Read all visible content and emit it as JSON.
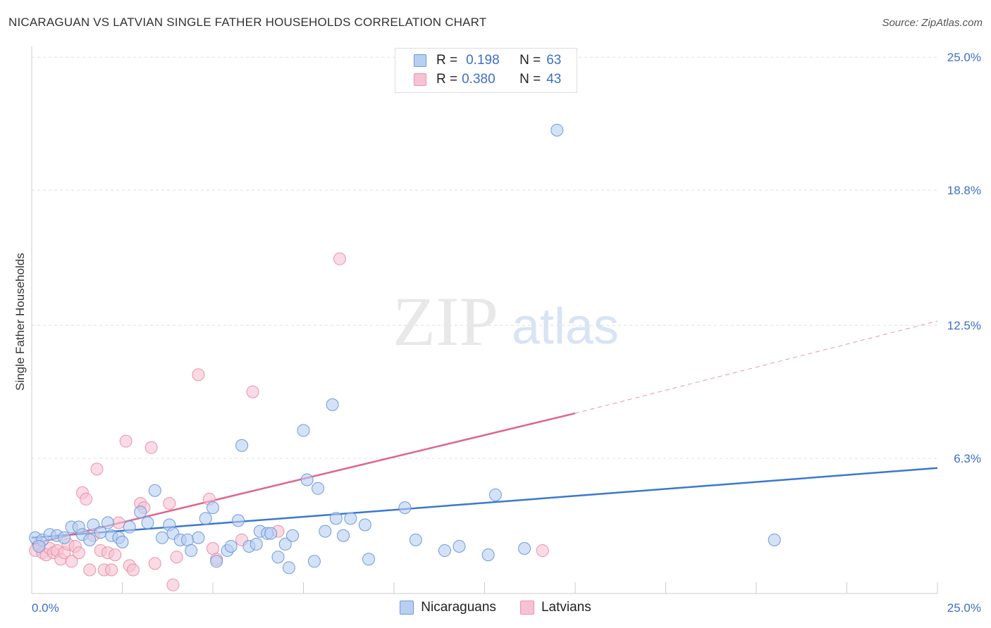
{
  "title": "NICARAGUAN VS LATVIAN SINGLE FATHER HOUSEHOLDS CORRELATION CHART",
  "source": "Source: ZipAtlas.com",
  "watermark": {
    "zip": "ZIP",
    "atlas": "atlas"
  },
  "legend_top": [
    {
      "r_label": "R =",
      "r_value": "0.198",
      "n_label": "N =",
      "n_value": "63"
    },
    {
      "r_label": "R =",
      "r_value": "0.380",
      "n_label": "N =",
      "n_value": "43"
    }
  ],
  "colors": {
    "blue_fill": "#b7cff2",
    "blue_stroke": "#6f9ad8",
    "blue_line": "#3a78cf",
    "pink_fill": "#f7c2d1",
    "pink_stroke": "#e893ae",
    "pink_line": "#e0658f",
    "grid": "#dddddd",
    "tick_text": "#3d6fc4"
  },
  "chart_data": {
    "type": "scatter",
    "title": "NICARAGUAN VS LATVIAN SINGLE FATHER HOUSEHOLDS CORRELATION CHART",
    "xlabel": "",
    "ylabel": "Single Father Households",
    "xlim": [
      0,
      25
    ],
    "ylim": [
      0,
      25.5
    ],
    "x_tick_labels": [
      "0.0%",
      "25.0%"
    ],
    "y_ticks": [
      6.3,
      12.5,
      18.8,
      25.0
    ],
    "y_tick_labels": [
      "6.3%",
      "12.5%",
      "18.8%",
      "25.0%"
    ],
    "grid": true,
    "legend": "bottom-center",
    "series": [
      {
        "name": "Nicaraguans",
        "color": "#6f9ad8",
        "r": 0.198,
        "n": 63,
        "trend": {
          "x": [
            0,
            25
          ],
          "y": [
            2.6,
            5.85
          ]
        },
        "points": [
          [
            0.1,
            2.6
          ],
          [
            0.3,
            2.5
          ],
          [
            0.5,
            2.75
          ],
          [
            0.7,
            2.7
          ],
          [
            0.9,
            2.6
          ],
          [
            1.1,
            3.1
          ],
          [
            1.3,
            3.1
          ],
          [
            1.4,
            2.75
          ],
          [
            1.6,
            2.5
          ],
          [
            1.7,
            3.2
          ],
          [
            1.9,
            2.85
          ],
          [
            2.1,
            3.3
          ],
          [
            2.2,
            2.7
          ],
          [
            2.4,
            2.6
          ],
          [
            2.5,
            2.4
          ],
          [
            2.7,
            3.1
          ],
          [
            3.0,
            3.8
          ],
          [
            3.2,
            3.3
          ],
          [
            3.4,
            4.8
          ],
          [
            3.6,
            2.6
          ],
          [
            3.8,
            3.2
          ],
          [
            3.9,
            2.8
          ],
          [
            4.1,
            2.5
          ],
          [
            4.3,
            2.5
          ],
          [
            4.4,
            2.0
          ],
          [
            4.6,
            2.6
          ],
          [
            4.8,
            3.5
          ],
          [
            5.0,
            4.0
          ],
          [
            5.1,
            1.5
          ],
          [
            5.4,
            2.0
          ],
          [
            5.5,
            2.2
          ],
          [
            5.7,
            3.4
          ],
          [
            5.8,
            6.9
          ],
          [
            6.0,
            2.2
          ],
          [
            6.2,
            2.3
          ],
          [
            6.3,
            2.9
          ],
          [
            6.5,
            2.8
          ],
          [
            6.6,
            2.8
          ],
          [
            6.8,
            1.7
          ],
          [
            7.0,
            2.3
          ],
          [
            7.1,
            1.2
          ],
          [
            7.2,
            2.7
          ],
          [
            7.5,
            7.6
          ],
          [
            7.6,
            5.3
          ],
          [
            7.8,
            1.5
          ],
          [
            7.9,
            4.9
          ],
          [
            8.1,
            2.9
          ],
          [
            8.3,
            8.8
          ],
          [
            8.4,
            3.5
          ],
          [
            8.6,
            2.7
          ],
          [
            8.8,
            3.5
          ],
          [
            9.2,
            3.2
          ],
          [
            9.3,
            1.6
          ],
          [
            10.3,
            4.0
          ],
          [
            10.6,
            2.5
          ],
          [
            11.4,
            2.0
          ],
          [
            11.8,
            2.2
          ],
          [
            12.6,
            1.8
          ],
          [
            12.8,
            4.6
          ],
          [
            13.6,
            2.1
          ],
          [
            14.5,
            21.6
          ],
          [
            20.5,
            2.5
          ],
          [
            0.2,
            2.2
          ]
        ]
      },
      {
        "name": "Latvians",
        "color": "#e893ae",
        "r": 0.38,
        "n": 43,
        "trend": {
          "x": [
            0,
            15
          ],
          "y": [
            2.3,
            8.4
          ]
        },
        "trend_dashed": {
          "x": [
            15,
            25
          ],
          "y": [
            8.4,
            12.7
          ]
        },
        "points": [
          [
            0.1,
            2.0
          ],
          [
            0.2,
            2.3
          ],
          [
            0.3,
            1.9
          ],
          [
            0.4,
            1.8
          ],
          [
            0.5,
            2.1
          ],
          [
            0.6,
            1.9
          ],
          [
            0.7,
            2.0
          ],
          [
            0.8,
            1.6
          ],
          [
            0.9,
            1.9
          ],
          [
            1.0,
            2.3
          ],
          [
            1.1,
            1.5
          ],
          [
            1.2,
            2.2
          ],
          [
            1.3,
            1.9
          ],
          [
            1.4,
            4.7
          ],
          [
            1.5,
            4.4
          ],
          [
            1.6,
            1.1
          ],
          [
            1.7,
            2.7
          ],
          [
            1.8,
            5.8
          ],
          [
            1.9,
            2.0
          ],
          [
            2.0,
            1.1
          ],
          [
            2.1,
            1.9
          ],
          [
            2.2,
            1.1
          ],
          [
            2.3,
            1.8
          ],
          [
            2.4,
            3.3
          ],
          [
            2.6,
            7.1
          ],
          [
            2.7,
            1.3
          ],
          [
            2.8,
            1.1
          ],
          [
            3.0,
            4.2
          ],
          [
            3.1,
            4.0
          ],
          [
            3.3,
            6.8
          ],
          [
            3.4,
            1.4
          ],
          [
            3.8,
            4.2
          ],
          [
            3.9,
            0.4
          ],
          [
            4.0,
            1.7
          ],
          [
            4.6,
            10.2
          ],
          [
            4.9,
            4.4
          ],
          [
            5.0,
            2.1
          ],
          [
            5.1,
            1.6
          ],
          [
            5.8,
            2.5
          ],
          [
            6.1,
            9.4
          ],
          [
            6.8,
            2.9
          ],
          [
            8.5,
            15.6
          ],
          [
            14.1,
            2.0
          ]
        ]
      }
    ]
  },
  "bottom_legend": [
    {
      "label": "Nicaraguans"
    },
    {
      "label": "Latvians"
    }
  ]
}
